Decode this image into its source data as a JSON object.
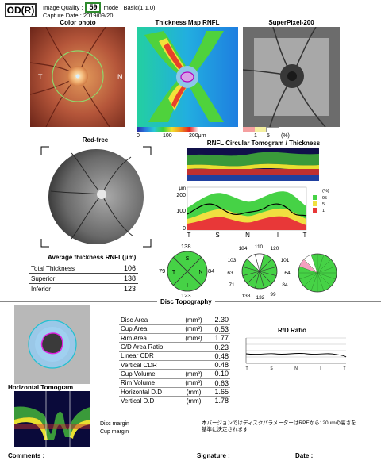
{
  "header": {
    "eye": "OD(R)",
    "image_quality_label": "Image Quality :",
    "image_quality_value": "59",
    "mode": "mode : Basic(1.1.0)",
    "capture_date": "Capture Date : 2019/09/20"
  },
  "color_photo": {
    "title": "Color photo",
    "left_label": "T",
    "right_label": "N"
  },
  "thickness_map": {
    "title": "Thickness Map RNFL",
    "scale": [
      "0",
      "100",
      "200μm"
    ]
  },
  "superpixel": {
    "title": "SuperPixel-200",
    "scale": [
      "1",
      "5",
      "(%)"
    ]
  },
  "red_free": {
    "title": "Red-free"
  },
  "rnfl_tomogram": {
    "title": "RNFL Circular Tomogram / Thickness",
    "y_unit": "μm",
    "y_ticks": [
      "200",
      "100",
      "0"
    ],
    "x_ticks": [
      "T",
      "S",
      "N",
      "I",
      "T"
    ],
    "legend": [
      "(%)",
      "95",
      "5",
      "1"
    ]
  },
  "chart_data": {
    "type": "line",
    "x": [
      "T",
      "S",
      "N",
      "I",
      "T"
    ],
    "ylim": [
      0,
      200
    ],
    "ylabel": "μm",
    "series": []
  },
  "avg_thickness": {
    "title": "Average thickness RNFL(μm)",
    "rows": [
      {
        "label": "Total Thickness",
        "value": "106"
      },
      {
        "label": "Superior",
        "value": "138"
      },
      {
        "label": "Inferior",
        "value": "123"
      }
    ]
  },
  "quadrant": {
    "S": "S",
    "T": "T",
    "N": "N",
    "I": "I",
    "top": "138",
    "left": "79",
    "right": "84",
    "bottom": "123"
  },
  "clock": {
    "values": [
      "184",
      "110",
      "120",
      "101",
      "64",
      "84",
      "99",
      "132",
      "138",
      "71",
      "63",
      "103"
    ]
  },
  "disc_topography": {
    "title": "Disc Topography",
    "params": [
      {
        "label": "Disc Area",
        "unit": "(mm²)",
        "value": "2.30"
      },
      {
        "label": "Cup Area",
        "unit": "(mm²)",
        "value": "0.53"
      },
      {
        "label": "Rim Area",
        "unit": "(mm²)",
        "value": "1.77"
      },
      {
        "label": "C/D Area Ratio",
        "unit": "",
        "value": "0.23"
      },
      {
        "label": "Linear CDR",
        "unit": "",
        "value": "0.48"
      },
      {
        "label": "Vertical CDR",
        "unit": "",
        "value": "0.48"
      },
      {
        "label": "Cup Volume",
        "unit": "(mm³)",
        "value": "0.10"
      },
      {
        "label": "Rim Volume",
        "unit": "(mm³)",
        "value": "0.63"
      },
      {
        "label": "Horizontal D.D",
        "unit": "(mm)",
        "value": "1.65"
      },
      {
        "label": "Vertical D.D",
        "unit": "(mm)",
        "value": "1.78"
      }
    ],
    "rd_title": "R/D Ratio",
    "rd_ticks": [
      "T",
      "S",
      "N",
      "I",
      "T"
    ],
    "legend_disc": "Disc margin",
    "legend_cup": "Cup margin",
    "note": "本バージョンではディスクパラメーターはRPEから120umの高さを基準に決定されます"
  },
  "horizontal_tomogram": {
    "title": "Horizontal Tomogram"
  },
  "footer": {
    "comments": "Comments :",
    "signature": "Signature :",
    "date": "Date :"
  }
}
